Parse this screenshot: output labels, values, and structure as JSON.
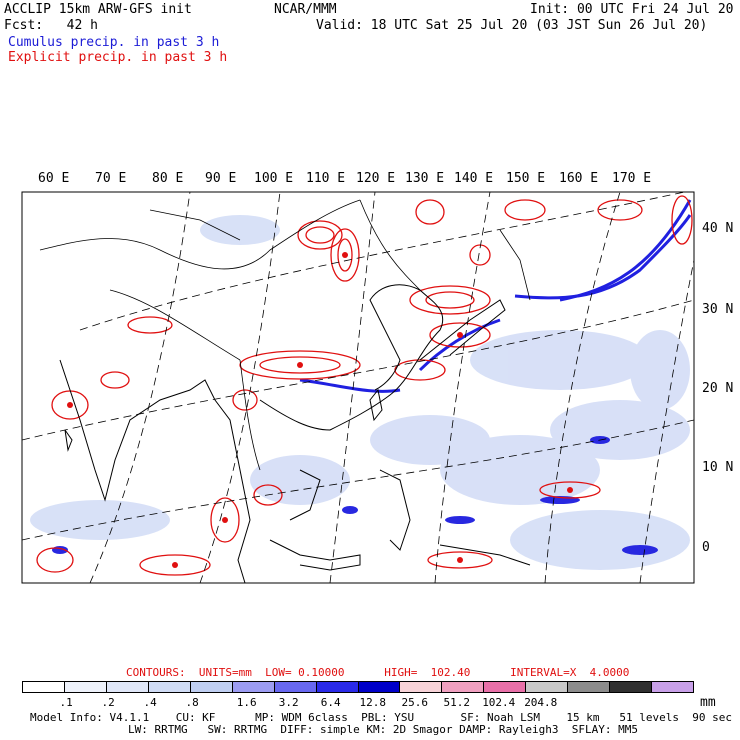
{
  "header": {
    "line1_left": "ACCLIP 15km ARW-GFS init",
    "center": "NCAR/MMM",
    "line1_right": "Init: 00 UTC Fri 24 Jul 20",
    "line2_left": "Fcst:   42 h",
    "line2_right": "Valid: 18 UTC Sat 25 Jul 20 (03 JST Sun 26 Jul 20)",
    "legend_cumulus": "Cumulus precip. in past 3 h",
    "legend_explicit": "Explicit precip. in past 3 h"
  },
  "map": {
    "lon_labels": [
      "60 E",
      "70 E",
      "80 E",
      "90 E",
      "100 E",
      "110 E",
      "120 E",
      "130 E",
      "140 E",
      "150 E",
      "160 E",
      "170 E"
    ],
    "lat_labels": [
      "40 N",
      "30 N",
      "20 N",
      "10 N",
      "0"
    ]
  },
  "contours": {
    "text": "CONTOURS:  UNITS=mm  LOW= 0.10000      HIGH=  102.40      INTERVAL=X  4.0000"
  },
  "colorbar": {
    "colors": [
      "#ffffff",
      "#eef2fb",
      "#e0e7f8",
      "#d0dcf5",
      "#c0cff2",
      "#9c9cf2",
      "#6868f0",
      "#2a2ae8",
      "#0000c8",
      "#f7d3d8",
      "#f0a0c0",
      "#e870a8",
      "#c8c8c8",
      "#8c8c8c",
      "#303030",
      "#c8a0e8"
    ],
    "tick_labels": [
      ".1",
      ".2",
      ".4",
      ".8",
      "1.6",
      "3.2",
      "6.4",
      "12.8",
      "25.6",
      "51.2",
      "102.4",
      "204.8"
    ],
    "units": "mm"
  },
  "footer": {
    "line1": "Model Info: V4.1.1    CU: KF      MP: WDM 6class  PBL: YSU       SF: Noah LSM    15 km   51 levels  90 sec",
    "line2": "LW: RRTMG   SW: RRTMG  DIFF: simple KM: 2D Smagor DAMP: Rayleigh3  SFLAY: MM5"
  }
}
